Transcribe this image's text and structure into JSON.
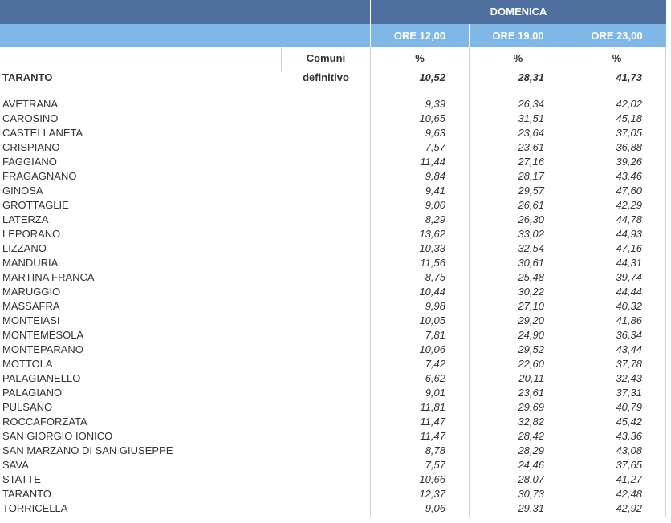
{
  "header": {
    "day": "DOMENICA",
    "times": [
      "ORE 12,00",
      "ORE 19,00",
      "ORE 23,00"
    ],
    "comuni_label": "Comuni",
    "pct": "%"
  },
  "total": {
    "name": "TARANTO",
    "status": "definitivo",
    "v1": "10,52",
    "v2": "28,31",
    "v3": "41,73"
  },
  "rows": [
    {
      "name": "AVETRANA",
      "v1": "9,39",
      "v2": "26,34",
      "v3": "42,02"
    },
    {
      "name": "CAROSINO",
      "v1": "10,65",
      "v2": "31,51",
      "v3": "45,18"
    },
    {
      "name": "CASTELLANETA",
      "v1": "9,63",
      "v2": "23,64",
      "v3": "37,05"
    },
    {
      "name": "CRISPIANO",
      "v1": "7,57",
      "v2": "23,61",
      "v3": "36,88"
    },
    {
      "name": "FAGGIANO",
      "v1": "11,44",
      "v2": "27,16",
      "v3": "39,26"
    },
    {
      "name": "FRAGAGNANO",
      "v1": "9,84",
      "v2": "28,17",
      "v3": "43,46"
    },
    {
      "name": "GINOSA",
      "v1": "9,41",
      "v2": "29,57",
      "v3": "47,60"
    },
    {
      "name": "GROTTAGLIE",
      "v1": "9,00",
      "v2": "26,61",
      "v3": "42,29"
    },
    {
      "name": "LATERZA",
      "v1": "8,29",
      "v2": "26,30",
      "v3": "44,78"
    },
    {
      "name": "LEPORANO",
      "v1": "13,62",
      "v2": "33,02",
      "v3": "44,93"
    },
    {
      "name": "LIZZANO",
      "v1": "10,33",
      "v2": "32,54",
      "v3": "47,16"
    },
    {
      "name": "MANDURIA",
      "v1": "11,56",
      "v2": "30,61",
      "v3": "44,31"
    },
    {
      "name": "MARTINA FRANCA",
      "v1": "8,75",
      "v2": "25,48",
      "v3": "39,74"
    },
    {
      "name": "MARUGGIO",
      "v1": "10,44",
      "v2": "30,22",
      "v3": "44,44"
    },
    {
      "name": "MASSAFRA",
      "v1": "9,98",
      "v2": "27,10",
      "v3": "40,32"
    },
    {
      "name": "MONTEIASI",
      "v1": "10,05",
      "v2": "29,20",
      "v3": "41,86"
    },
    {
      "name": "MONTEMESOLA",
      "v1": "7,81",
      "v2": "24,90",
      "v3": "36,34"
    },
    {
      "name": "MONTEPARANO",
      "v1": "10,06",
      "v2": "29,52",
      "v3": "43,44"
    },
    {
      "name": "MOTTOLA",
      "v1": "7,42",
      "v2": "22,60",
      "v3": "37,78"
    },
    {
      "name": "PALAGIANELLO",
      "v1": "6,62",
      "v2": "20,11",
      "v3": "32,43"
    },
    {
      "name": "PALAGIANO",
      "v1": "9,01",
      "v2": "23,61",
      "v3": "37,31"
    },
    {
      "name": "PULSANO",
      "v1": "11,81",
      "v2": "29,69",
      "v3": "40,79"
    },
    {
      "name": "ROCCAFORZATA",
      "v1": "11,47",
      "v2": "32,82",
      "v3": "45,42"
    },
    {
      "name": "SAN GIORGIO IONICO",
      "v1": "11,47",
      "v2": "28,42",
      "v3": "43,36"
    },
    {
      "name": "SAN MARZANO DI SAN GIUSEPPE",
      "v1": "8,78",
      "v2": "28,29",
      "v3": "43,08"
    },
    {
      "name": "SAVA",
      "v1": "7,57",
      "v2": "24,46",
      "v3": "37,65"
    },
    {
      "name": "STATTE",
      "v1": "10,66",
      "v2": "28,07",
      "v3": "41,27"
    },
    {
      "name": "TARANTO",
      "v1": "12,37",
      "v2": "30,73",
      "v3": "42,48"
    },
    {
      "name": "TORRICELLA",
      "v1": "9,06",
      "v2": "29,31",
      "v3": "42,92"
    }
  ]
}
